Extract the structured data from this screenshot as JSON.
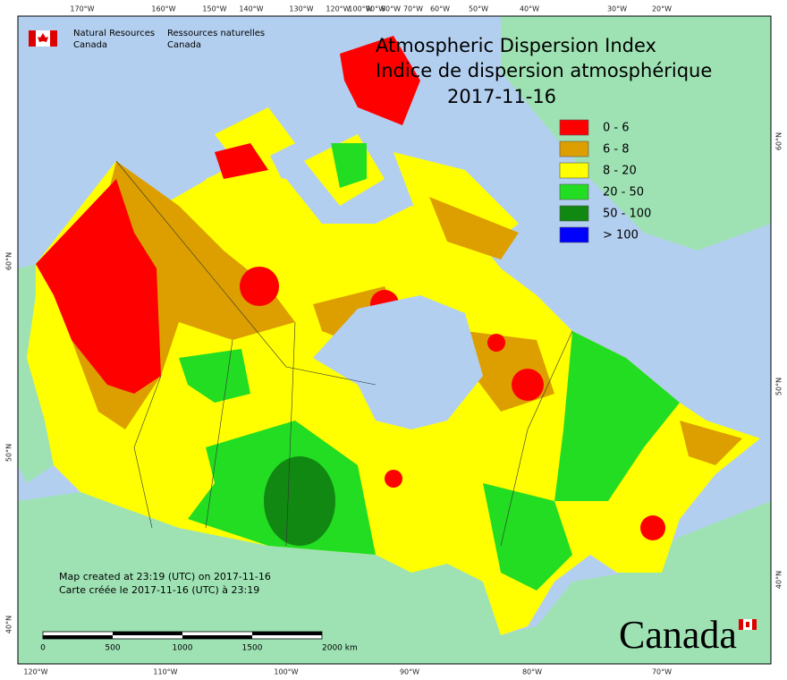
{
  "header": {
    "org_en": [
      "Natural Resources",
      "Canada"
    ],
    "org_fr": [
      "Ressources naturelles",
      "Canada"
    ]
  },
  "title": {
    "en": "Atmospheric Dispersion Index",
    "fr": "Indice de dispersion atmosphérique",
    "date": "2017-11-16"
  },
  "legend": [
    {
      "label": "0 - 6",
      "color": "#ff0000"
    },
    {
      "label": "6 - 8",
      "color": "#dd9f00"
    },
    {
      "label": "8 - 20",
      "color": "#ffff00"
    },
    {
      "label": "20 - 50",
      "color": "#22dd22"
    },
    {
      "label": "50 - 100",
      "color": "#118811"
    },
    {
      "label": "> 100",
      "color": "#0000ff"
    }
  ],
  "graticule": {
    "top": [
      "170°W",
      "160°W",
      "150°W",
      "140°W",
      "130°W",
      "120°W",
      "100°W",
      "90°W",
      "80°W",
      "70°W",
      "60°W",
      "50°W",
      "40°W",
      "30°W",
      "20°W"
    ],
    "bottom": [
      "120°W",
      "110°W",
      "100°W",
      "90°W",
      "80°W",
      "70°W"
    ],
    "left": [
      "60°N",
      "50°N",
      "40°N"
    ],
    "right": [
      "60°N",
      "50°N",
      "40°N"
    ]
  },
  "footer": {
    "en": "Map created at 23:19 (UTC) on 2017-11-16",
    "fr": "Carte créée le 2017-11-16 (UTC) à 23:19"
  },
  "scale_bar": {
    "labels": [
      "0",
      "500",
      "1000",
      "1500",
      "2000 km"
    ]
  },
  "wordmark": "Canada"
}
